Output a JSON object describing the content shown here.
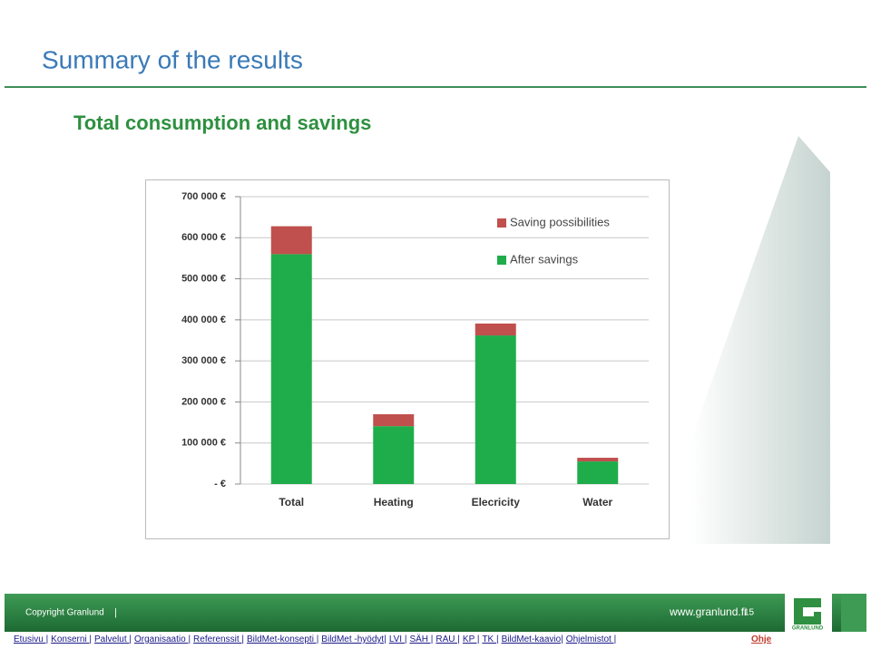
{
  "slide": {
    "title": "Summary of the results",
    "subtitle": "Total consumption and savings",
    "footer": {
      "copyright": "Copyright Granlund",
      "separator": "|",
      "website": "www.granlund.fi",
      "page": "15"
    },
    "nav": [
      "Etusivu |",
      "Konserni |",
      "Palvelut |",
      "Organisaatio |",
      "Referenssit |",
      "BildMet-konsepti |",
      "BildMet -hyödyt|",
      "LVI |",
      "SÄH |",
      "RAU |",
      "KP |",
      "TK |",
      "BildMet-kaavio|",
      "Ohjelmistot |"
    ],
    "help": "Ohje",
    "logo": "GRANLUND"
  },
  "chart_data": {
    "type": "stacked-bar",
    "categories": [
      "Total",
      "Heating",
      "Elecricity",
      "Water"
    ],
    "series": [
      {
        "name": "After savings",
        "color": "#1fad4b",
        "values": [
          560000,
          141000,
          362000,
          55000
        ]
      },
      {
        "name": "Saving possibilities",
        "color": "#c0504d",
        "values": [
          68000,
          29000,
          29000,
          9000
        ]
      }
    ],
    "ylim": [
      0,
      700000
    ],
    "yticks": [
      {
        "value": 0,
        "label": "-   €"
      },
      {
        "value": 100000,
        "label": "100 000 €"
      },
      {
        "value": 200000,
        "label": "200 000 €"
      },
      {
        "value": 300000,
        "label": "300 000 €"
      },
      {
        "value": 400000,
        "label": "400 000 €"
      },
      {
        "value": 500000,
        "label": "500 000 €"
      },
      {
        "value": 600000,
        "label": "600 000 €"
      },
      {
        "value": 700000,
        "label": "700 000 €"
      }
    ],
    "grid": true,
    "legend": "top-right"
  }
}
